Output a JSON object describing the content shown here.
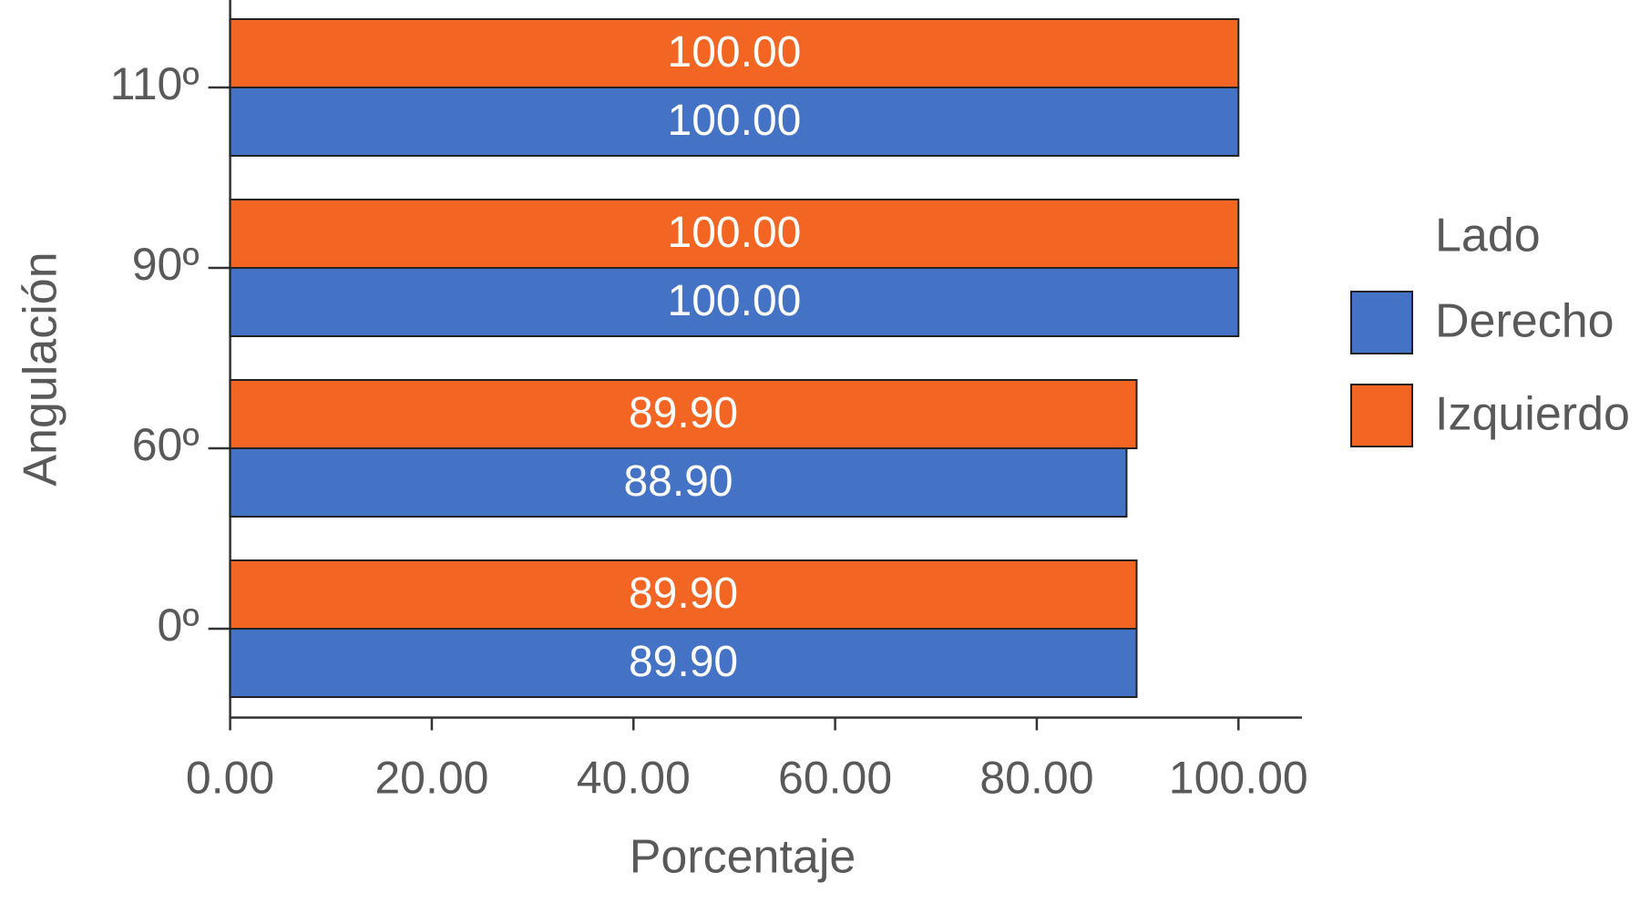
{
  "chart_data": {
    "type": "bar",
    "orientation": "horizontal",
    "categories": [
      "0º",
      "60º",
      "90º",
      "110º"
    ],
    "x_label": "Porcentaje",
    "y_label": "Angulación",
    "legend_title": "Lado",
    "legend": "right",
    "series": [
      {
        "name": "Derecho",
        "color": "#4472c4",
        "values": [
          89.9,
          88.9,
          100,
          100
        ],
        "value_labels": [
          "89.90",
          "88.90",
          "100.00",
          "100.00"
        ]
      },
      {
        "name": "Izquierdo",
        "color": "#f26522",
        "values": [
          89.9,
          89.9,
          100,
          100
        ],
        "value_labels": [
          "89.90",
          "89.90",
          "100.00",
          "100.00"
        ]
      }
    ],
    "xlim": [
      0,
      106.3
    ],
    "xticks": [
      {
        "value": 0,
        "label": "0.00"
      },
      {
        "value": 20,
        "label": "20.00"
      },
      {
        "value": 40,
        "label": "40.00"
      },
      {
        "value": 60,
        "label": "60.00"
      },
      {
        "value": 80,
        "label": "80.00"
      },
      {
        "value": 100,
        "label": "100.00"
      }
    ]
  }
}
